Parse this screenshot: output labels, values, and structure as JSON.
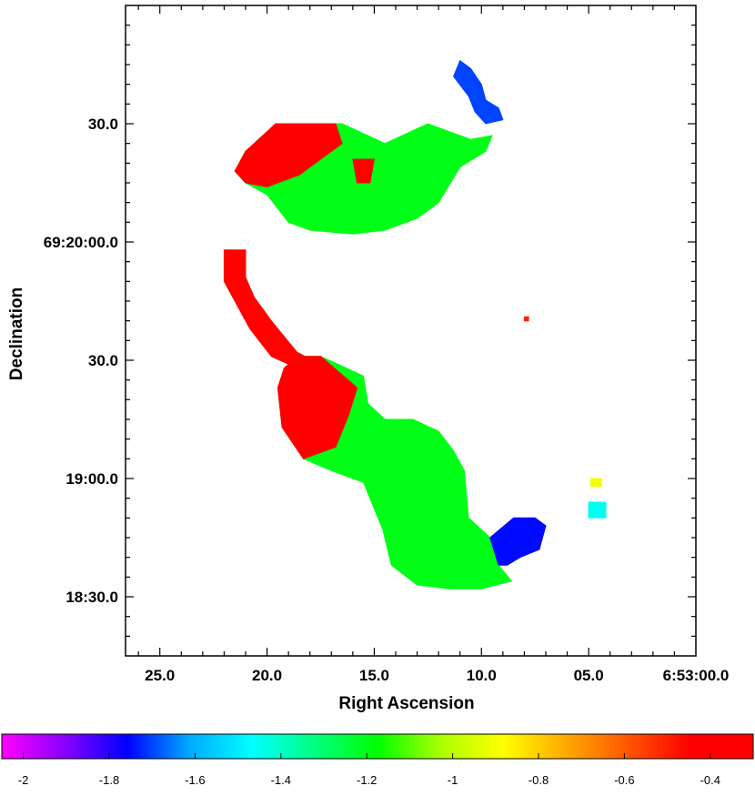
{
  "chart_data": {
    "type": "heatmap",
    "title": "",
    "xlabel": "Right Ascension",
    "ylabel": "Declination",
    "grid": false,
    "x_ticks": [
      {
        "label": "25.0",
        "sec": 25
      },
      {
        "label": "20.0",
        "sec": 20
      },
      {
        "label": "15.0",
        "sec": 15
      },
      {
        "label": "10.0",
        "sec": 10
      },
      {
        "label": "05.0",
        "sec": 5
      },
      {
        "label": "6:53:00.0",
        "sec": 0
      }
    ],
    "y_ticks": [
      {
        "label": "30.0",
        "arcsec": 30
      },
      {
        "label": "69:20:00.0",
        "arcsec": 0
      },
      {
        "label": "30.0",
        "arcsec": -30
      },
      {
        "label": "19:00.0",
        "arcsec": -60
      },
      {
        "label": "18:30.0",
        "arcsec": -90
      }
    ],
    "xlim_sec": [
      26.6,
      0.0
    ],
    "ylim_arcsec": [
      60,
      -105
    ],
    "colorbar": {
      "range": [
        -2.05,
        -0.3
      ],
      "ticks": [
        {
          "label": "-2",
          "value": -2.0
        },
        {
          "label": "-1.8",
          "value": -1.8
        },
        {
          "label": "-1.6",
          "value": -1.6
        },
        {
          "label": "-1.4",
          "value": -1.4
        },
        {
          "label": "-1.2",
          "value": -1.2
        },
        {
          "label": "-1",
          "value": -1.0
        },
        {
          "label": "-0.8",
          "value": -0.8
        },
        {
          "label": "-0.6",
          "value": -0.6
        },
        {
          "label": "-0.4",
          "value": -0.4
        }
      ],
      "colormap": [
        "#ff00ff",
        "#8800ff",
        "#0000ff",
        "#00aaff",
        "#00ffff",
        "#00ff80",
        "#00ff00",
        "#aaff00",
        "#ffff00",
        "#ffaa00",
        "#ff5500",
        "#ff0000",
        "#ff0000"
      ]
    },
    "regions": [
      {
        "name": "north-lobe",
        "value": -1.2,
        "poly": [
          [
            19.5,
            30
          ],
          [
            16.5,
            30
          ],
          [
            14.5,
            25
          ],
          [
            12.5,
            30
          ],
          [
            11.5,
            28
          ],
          [
            10.5,
            26
          ],
          [
            9.5,
            27
          ],
          [
            9.8,
            23
          ],
          [
            11,
            19
          ],
          [
            12,
            10
          ],
          [
            13,
            6
          ],
          [
            14.5,
            3
          ],
          [
            16,
            2
          ],
          [
            18,
            3
          ],
          [
            19,
            5
          ],
          [
            20,
            12
          ],
          [
            21,
            15
          ],
          [
            21.5,
            18
          ],
          [
            21,
            23
          ]
        ]
      },
      {
        "name": "north-lobe-head",
        "value": -0.4,
        "poly": [
          [
            19.6,
            30
          ],
          [
            16.8,
            30
          ],
          [
            16.5,
            25
          ],
          [
            17.5,
            21
          ],
          [
            18.5,
            17
          ],
          [
            20,
            14
          ],
          [
            21,
            15
          ],
          [
            21.5,
            18
          ],
          [
            21,
            23
          ]
        ]
      },
      {
        "name": "north-knot",
        "value": -0.45,
        "poly": [
          [
            16,
            21
          ],
          [
            15,
            21
          ],
          [
            15.2,
            15
          ],
          [
            15.8,
            15
          ]
        ]
      },
      {
        "name": "north-tail",
        "value": -1.7,
        "poly": [
          [
            11,
            46
          ],
          [
            10.5,
            44
          ],
          [
            10,
            40
          ],
          [
            9.8,
            36
          ],
          [
            9.2,
            34
          ],
          [
            9,
            31
          ],
          [
            9.8,
            30
          ],
          [
            10.3,
            33
          ],
          [
            10.6,
            37
          ],
          [
            11.3,
            42
          ]
        ]
      },
      {
        "name": "bridge",
        "value": -0.45,
        "poly": [
          [
            22,
            -2
          ],
          [
            21,
            -2
          ],
          [
            21,
            -9
          ],
          [
            20.6,
            -14
          ],
          [
            19.8,
            -20
          ],
          [
            18.6,
            -28
          ],
          [
            17.5,
            -31
          ],
          [
            18.6,
            -32
          ],
          [
            19.8,
            -29
          ],
          [
            20.8,
            -22
          ],
          [
            21.6,
            -14
          ],
          [
            22,
            -10
          ]
        ]
      },
      {
        "name": "south-lobe",
        "value": -1.2,
        "poly": [
          [
            18.6,
            -29
          ],
          [
            17.5,
            -29
          ],
          [
            15.5,
            -34
          ],
          [
            15.3,
            -41
          ],
          [
            14.5,
            -45
          ],
          [
            13.2,
            -45
          ],
          [
            12,
            -48
          ],
          [
            11.3,
            -53
          ],
          [
            10.8,
            -58
          ],
          [
            10.6,
            -70
          ],
          [
            9.6,
            -75
          ],
          [
            9.2,
            -82
          ],
          [
            8.6,
            -86
          ],
          [
            10,
            -88
          ],
          [
            11.5,
            -88
          ],
          [
            13,
            -87
          ],
          [
            14.2,
            -82
          ],
          [
            14.6,
            -73
          ],
          [
            15.5,
            -61
          ],
          [
            17,
            -58
          ],
          [
            18.3,
            -55
          ],
          [
            19.3,
            -47
          ],
          [
            19.5,
            -37
          ],
          [
            19.2,
            -32
          ]
        ]
      },
      {
        "name": "south-lobe-head",
        "value": -0.4,
        "poly": [
          [
            18.6,
            -29
          ],
          [
            17.5,
            -29
          ],
          [
            15.8,
            -37
          ],
          [
            16.2,
            -44
          ],
          [
            16.8,
            -52
          ],
          [
            18.3,
            -55
          ],
          [
            19.3,
            -47
          ],
          [
            19.5,
            -37
          ],
          [
            19.2,
            -32
          ]
        ]
      },
      {
        "name": "south-tail",
        "value": -1.75,
        "poly": [
          [
            9.6,
            -75
          ],
          [
            8.5,
            -70
          ],
          [
            7.5,
            -70
          ],
          [
            7,
            -72
          ],
          [
            7.3,
            -78
          ],
          [
            8.2,
            -80
          ],
          [
            8.8,
            -82
          ],
          [
            9.2,
            -82
          ]
        ]
      },
      {
        "name": "speck-1",
        "value": -0.5,
        "poly": [
          [
            8,
            -19
          ],
          [
            7.8,
            -19
          ],
          [
            7.8,
            -20
          ],
          [
            8,
            -20
          ]
        ]
      },
      {
        "name": "speck-2",
        "value": -1.45,
        "poly": [
          [
            5,
            -66
          ],
          [
            4.2,
            -66
          ],
          [
            4.2,
            -70
          ],
          [
            5,
            -70
          ]
        ]
      },
      {
        "name": "speck-3",
        "value": -0.9,
        "poly": [
          [
            4.9,
            -60
          ],
          [
            4.4,
            -60
          ],
          [
            4.4,
            -62
          ],
          [
            4.9,
            -62
          ]
        ]
      }
    ]
  }
}
